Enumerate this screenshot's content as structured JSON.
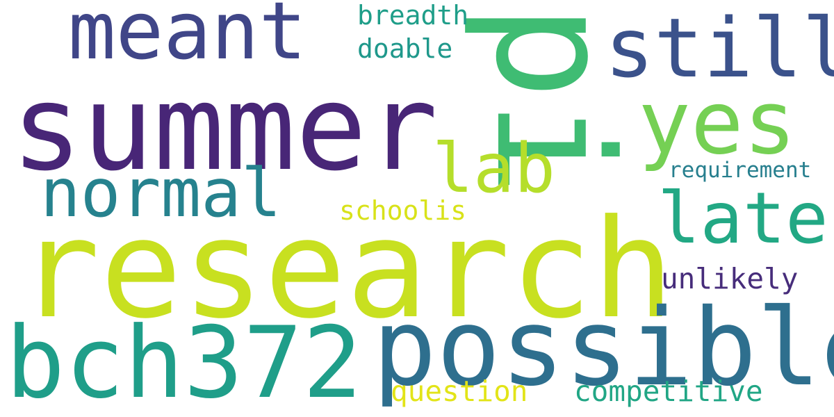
{
  "words": [
    {
      "id": "summer",
      "text": "summer",
      "color": "#482677"
    },
    {
      "id": "research",
      "text": "research",
      "color": "#c8e020"
    },
    {
      "id": "pi",
      "text": "pi",
      "color": "#3fbc73"
    },
    {
      "id": "possible",
      "text": "possible",
      "color": "#2e6f8e"
    },
    {
      "id": "bch372",
      "text": "bch372",
      "color": "#1f9e89"
    },
    {
      "id": "meant",
      "text": "meant",
      "color": "#404688"
    },
    {
      "id": "still",
      "text": "still",
      "color": "#3b528b"
    },
    {
      "id": "yes",
      "text": "yes",
      "color": "#75d054"
    },
    {
      "id": "lab",
      "text": "lab",
      "color": "#b5de2b"
    },
    {
      "id": "normal",
      "text": "normal",
      "color": "#26828e"
    },
    {
      "id": "late",
      "text": "late",
      "color": "#22a884"
    },
    {
      "id": "breadth",
      "text": "breadth",
      "color": "#1f9e89"
    },
    {
      "id": "doable",
      "text": "doable",
      "color": "#1f988b"
    },
    {
      "id": "requirement",
      "text": "requirement",
      "color": "#277f8e"
    },
    {
      "id": "schoolis",
      "text": "schoolis",
      "color": "#d8e219"
    },
    {
      "id": "unlikely",
      "text": "unlikely",
      "color": "#472d7b"
    },
    {
      "id": "question",
      "text": "question",
      "color": "#e2e418"
    },
    {
      "id": "competitive",
      "text": "competitive",
      "color": "#21a685"
    }
  ]
}
